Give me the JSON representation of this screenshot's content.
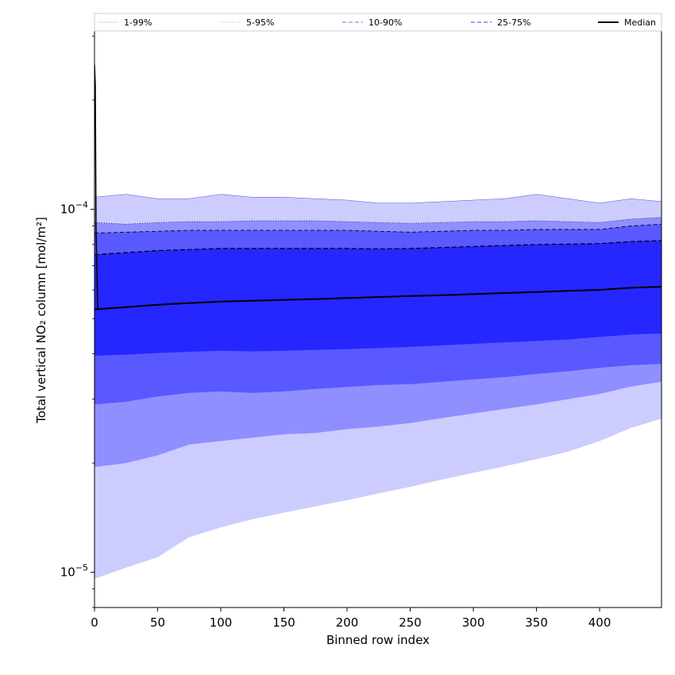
{
  "chart_data": {
    "type": "area",
    "xlabel": "Binned row index",
    "ylabel": "Total vertical NO₂ column [mol/m²]",
    "xlim": [
      0,
      449
    ],
    "ylim": [
      8e-06,
      0.00031
    ],
    "yscale": "log",
    "x_ticks": [
      0,
      50,
      100,
      150,
      200,
      250,
      300,
      350,
      400
    ],
    "x_tick_labels": [
      "0",
      "50",
      "100",
      "150",
      "200",
      "250",
      "300",
      "350",
      "400"
    ],
    "y_ticks": [
      1e-05,
      0.0001
    ],
    "y_tick_labels": [
      {
        "base": "10",
        "exp": "−5"
      },
      {
        "base": "10",
        "exp": "−4"
      }
    ],
    "grid": false,
    "legend_placement": "top, above plot",
    "legend": [
      {
        "label": "1-99%",
        "color": "#d9d9f5",
        "dash": "solid"
      },
      {
        "label": "5-95%",
        "color": "#b3b3ec",
        "dash": "dotted"
      },
      {
        "label": "10-90%",
        "color": "#8c8cf0",
        "dash": "dashed"
      },
      {
        "label": "25-75%",
        "color": "#6a6af5",
        "dash": "dashed"
      },
      {
        "label": "Median",
        "color": "#000000",
        "dash": "solid"
      }
    ],
    "x": [
      0,
      25,
      50,
      75,
      100,
      125,
      150,
      175,
      200,
      225,
      250,
      275,
      300,
      325,
      350,
      375,
      400,
      425,
      449
    ],
    "bands": [
      {
        "name": "1-99%",
        "color": "#ccccff",
        "lower": [
          9.6e-06,
          1.03e-05,
          1.1e-05,
          1.25e-05,
          1.33e-05,
          1.4e-05,
          1.46e-05,
          1.52e-05,
          1.58e-05,
          1.65e-05,
          1.72e-05,
          1.8e-05,
          1.88e-05,
          1.96e-05,
          2.05e-05,
          2.15e-05,
          2.3e-05,
          2.5e-05,
          2.65e-05
        ],
        "upper": [
          0.000108,
          0.00011,
          0.000107,
          0.000107,
          0.00011,
          0.000108,
          0.000108,
          0.000107,
          0.000106,
          0.000104,
          0.000104,
          0.000105,
          0.000106,
          0.000107,
          0.00011,
          0.000107,
          0.000104,
          0.000107,
          0.000105
        ]
      },
      {
        "name": "5-95%",
        "color": "#8f8fff",
        "lower": [
          1.95e-05,
          2e-05,
          2.1e-05,
          2.25e-05,
          2.3e-05,
          2.35e-05,
          2.4e-05,
          2.42e-05,
          2.48e-05,
          2.52e-05,
          2.58e-05,
          2.66e-05,
          2.74e-05,
          2.82e-05,
          2.9e-05,
          3e-05,
          3.1e-05,
          3.25e-05,
          3.35e-05
        ],
        "upper": [
          9.2e-05,
          9.1e-05,
          9.2e-05,
          9.25e-05,
          9.25e-05,
          9.3e-05,
          9.3e-05,
          9.3e-05,
          9.25e-05,
          9.2e-05,
          9.15e-05,
          9.2e-05,
          9.25e-05,
          9.25e-05,
          9.3e-05,
          9.25e-05,
          9.2e-05,
          9.4e-05,
          9.5e-05
        ]
      },
      {
        "name": "10-90%",
        "color": "#5959ff",
        "lower": [
          2.9e-05,
          2.95e-05,
          3.05e-05,
          3.12e-05,
          3.15e-05,
          3.12e-05,
          3.15e-05,
          3.2e-05,
          3.24e-05,
          3.28e-05,
          3.3e-05,
          3.35e-05,
          3.4e-05,
          3.45e-05,
          3.52e-05,
          3.58e-05,
          3.66e-05,
          3.72e-05,
          3.75e-05
        ],
        "upper": [
          8.6e-05,
          8.65e-05,
          8.7e-05,
          8.75e-05,
          8.75e-05,
          8.75e-05,
          8.75e-05,
          8.75e-05,
          8.75e-05,
          8.7e-05,
          8.65e-05,
          8.7e-05,
          8.75e-05,
          8.75e-05,
          8.8e-05,
          8.8e-05,
          8.8e-05,
          9e-05,
          9.1e-05
        ]
      },
      {
        "name": "25-75%",
        "color": "#2626ff",
        "lower": [
          3.95e-05,
          3.98e-05,
          4.02e-05,
          4.05e-05,
          4.08e-05,
          4.06e-05,
          4.08e-05,
          4.1e-05,
          4.12e-05,
          4.15e-05,
          4.18e-05,
          4.22e-05,
          4.26e-05,
          4.3e-05,
          4.34e-05,
          4.38e-05,
          4.45e-05,
          4.52e-05,
          4.55e-05
        ],
        "upper": [
          7.5e-05,
          7.6e-05,
          7.7e-05,
          7.75e-05,
          7.8e-05,
          7.8e-05,
          7.8e-05,
          7.8e-05,
          7.8e-05,
          7.78e-05,
          7.8e-05,
          7.85e-05,
          7.9e-05,
          7.95e-05,
          8e-05,
          8.02e-05,
          8.05e-05,
          8.15e-05,
          8.2e-05
        ]
      }
    ],
    "median": {
      "name": "Median",
      "color": "#000000",
      "values": [
        5.3e-05,
        5.38e-05,
        5.46e-05,
        5.52e-05,
        5.57e-05,
        5.6e-05,
        5.63e-05,
        5.66e-05,
        5.7e-05,
        5.73e-05,
        5.77e-05,
        5.8e-05,
        5.84e-05,
        5.88e-05,
        5.92e-05,
        5.96e-05,
        6e-05,
        6.08e-05,
        6.12e-05
      ]
    },
    "spike": {
      "x": [
        0,
        0.6,
        1.2,
        2.5
      ],
      "y": [
        0.00025,
        0.00022,
        9e-05,
        5.3e-05
      ]
    }
  }
}
